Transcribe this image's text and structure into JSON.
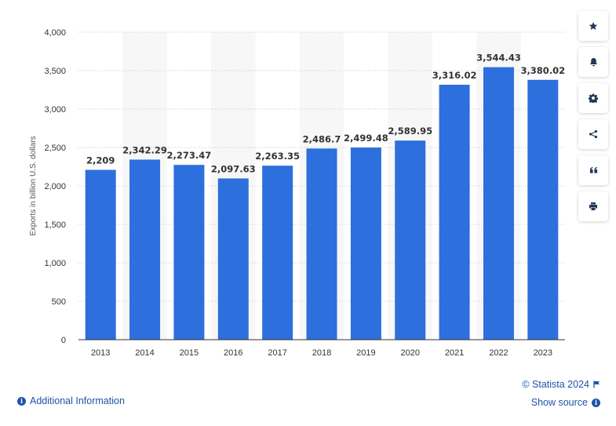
{
  "chart_data": {
    "type": "bar",
    "categories": [
      "2013",
      "2014",
      "2015",
      "2016",
      "2017",
      "2018",
      "2019",
      "2020",
      "2021",
      "2022",
      "2023"
    ],
    "values": [
      2209,
      2342.29,
      2273.47,
      2097.63,
      2263.35,
      2486.7,
      2499.48,
      2589.95,
      3316.02,
      3544.43,
      3380.02
    ],
    "value_labels": [
      "2,209",
      "2,342.29",
      "2,273.47",
      "2,097.63",
      "2,263.35",
      "2,486.7",
      "2,499.48",
      "2,589.95",
      "3,316.02",
      "3,544.43",
      "3,380.02"
    ],
    "ylabel": "Exports in billion U.S. dollars",
    "ylim": [
      0,
      4000
    ],
    "y_ticks": [
      0,
      500,
      1000,
      1500,
      2000,
      2500,
      3000,
      3500,
      4000
    ],
    "y_tick_labels": [
      "0",
      "500",
      "1,000",
      "1,500",
      "2,000",
      "2,500",
      "3,000",
      "3,500",
      "4,000"
    ],
    "grid": true,
    "bar_color": "#2d6fdc",
    "band_color": "#f7f7f7"
  },
  "footer": {
    "additional_info": "Additional Information",
    "copyright": "© Statista 2024",
    "show_source": "Show source"
  },
  "toolbar": {
    "icons": [
      "star-icon",
      "bell-icon",
      "gear-icon",
      "share-icon",
      "quote-icon",
      "print-icon"
    ]
  }
}
